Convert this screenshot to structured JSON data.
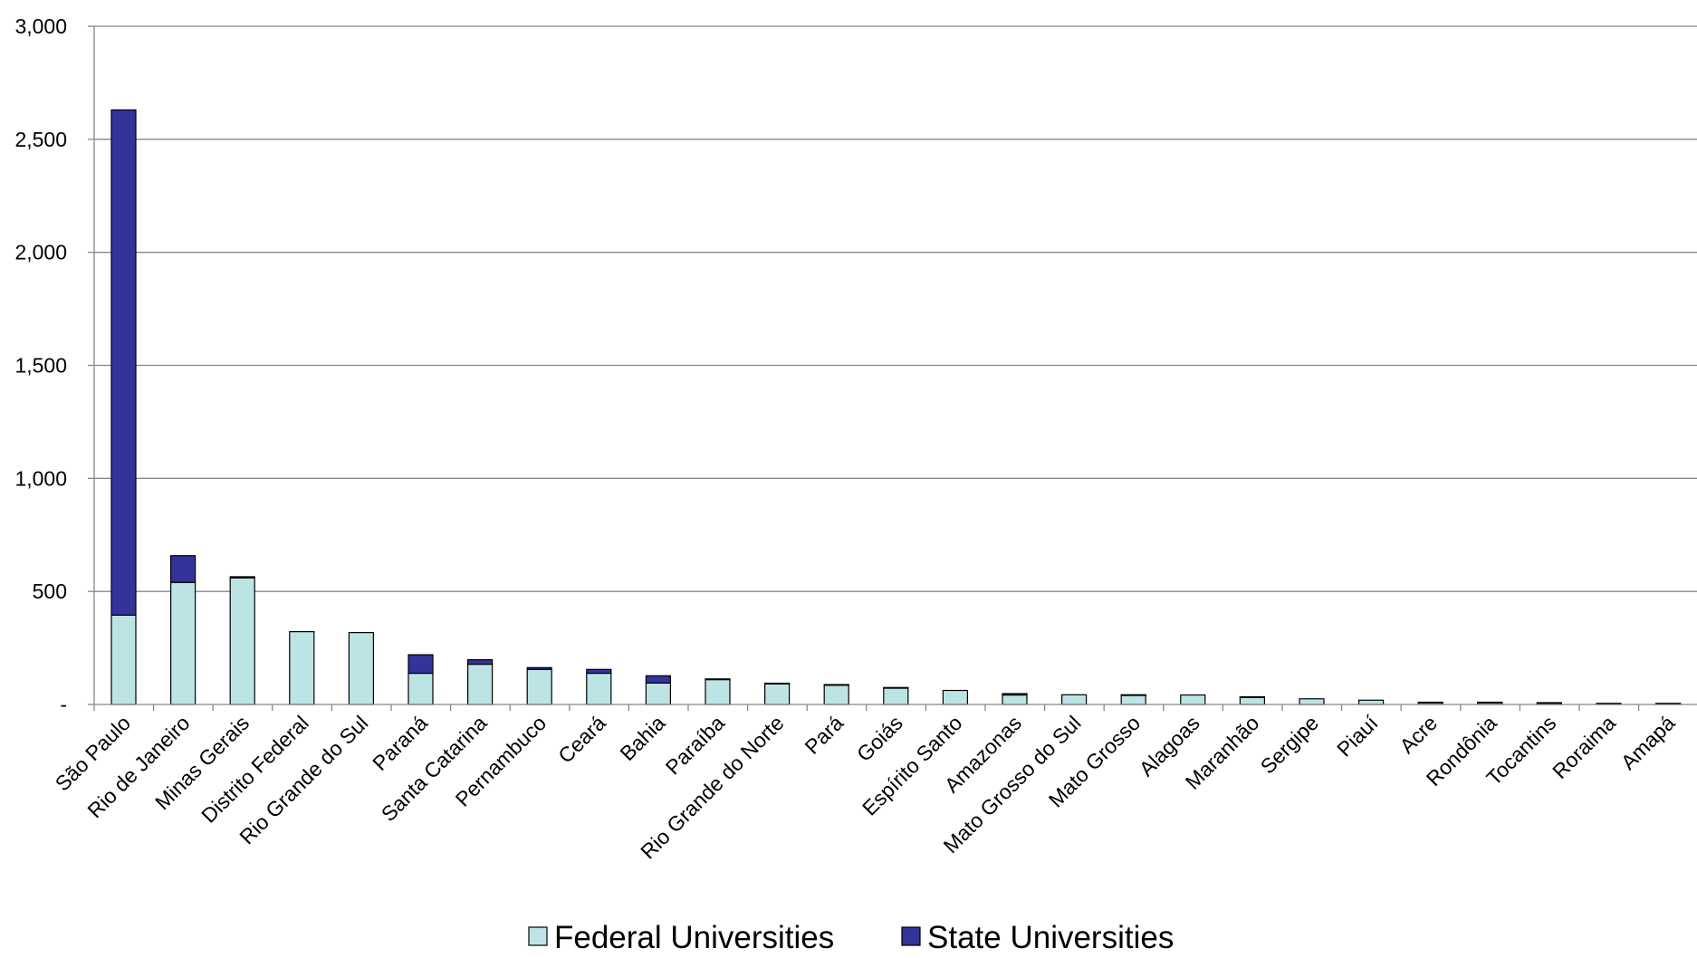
{
  "chart_data": {
    "type": "bar",
    "stacked": true,
    "categories": [
      "São Paulo",
      "Rio de Janeiro",
      "Minas Gerais",
      "Distrito Federal",
      "Rio Grande do Sul",
      "Paraná",
      "Santa Catarina",
      "Pernambuco",
      "Ceará",
      "Bahia",
      "Paraíba",
      "Rio Grande do Norte",
      "Pará",
      "Goiás",
      "Espírito Santo",
      "Amazonas",
      "Mato Grosso do Sul",
      "Mato Grosso",
      "Alagoas",
      "Maranhão",
      "Sergipe",
      "Piauí",
      "Acre",
      "Rondônia",
      "Tocantins",
      "Roraima",
      "Amapá"
    ],
    "series": [
      {
        "name": "Federal Universities",
        "color": "#bde4e4",
        "values": [
          395,
          540,
          560,
          322,
          318,
          138,
          178,
          155,
          138,
          95,
          110,
          92,
          87,
          73,
          62,
          42,
          43,
          41,
          42,
          33,
          25,
          19,
          8,
          8,
          6,
          4,
          4
        ]
      },
      {
        "name": "State Universities",
        "color": "#333399",
        "values": [
          2235,
          118,
          5,
          0,
          0,
          82,
          20,
          8,
          17,
          32,
          3,
          2,
          1,
          2,
          0,
          6,
          0,
          2,
          0,
          1,
          0,
          0,
          2,
          2,
          2,
          1,
          1
        ]
      }
    ],
    "yaxis": {
      "min": 0,
      "max": 3000,
      "ticks": [
        0,
        500,
        1000,
        1500,
        2000,
        2500,
        3000
      ],
      "tick_labels": [
        "-",
        "500",
        "1,000",
        "1,500",
        "2,000",
        "2,500",
        "3,000"
      ]
    },
    "grid": true,
    "legend_position": "bottom"
  }
}
